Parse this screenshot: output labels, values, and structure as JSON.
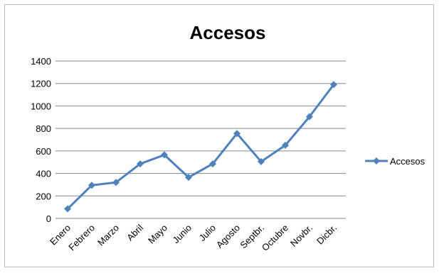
{
  "chart_data": {
    "type": "line",
    "title": "Accesos",
    "categories": [
      "Enero",
      "Febrero",
      "Marzo",
      "Abril",
      "Mayo",
      "Junio",
      "Julio",
      "Agosto",
      "Septbr.",
      "Octubre",
      "Novbr.",
      "Dicbr."
    ],
    "series": [
      {
        "name": "Accesos",
        "values": [
          85,
          295,
          320,
          485,
          565,
          365,
          485,
          755,
          505,
          650,
          905,
          1190
        ],
        "color": "#4f81bd",
        "marker": "diamond"
      }
    ],
    "ylim": [
      0,
      1400
    ],
    "yticks": [
      "0",
      "200",
      "400",
      "600",
      "800",
      "1000",
      "1200",
      "1400"
    ],
    "grid": true,
    "legend": "right"
  }
}
